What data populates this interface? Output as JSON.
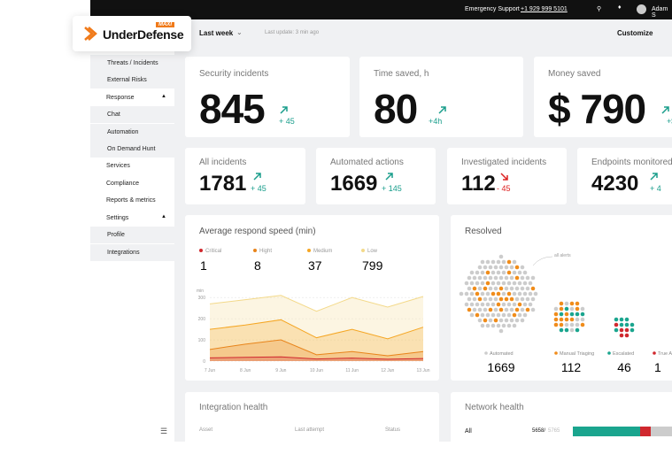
{
  "topbar": {
    "support_label": "Emergency Support",
    "phone": "+1 929 999 5101",
    "user": "Adam S"
  },
  "logo": {
    "name": "UnderDefense",
    "badge": "MAXI"
  },
  "sidebar": {
    "items": [
      "Threats / Incidents",
      "External Risks",
      "Response",
      "Chat",
      "Automation",
      "On Demand Hunt",
      "Services",
      "Compliance",
      "Reports & metrics",
      "Settings",
      "Profile",
      "Integrations"
    ]
  },
  "toolbar": {
    "period": "Last week",
    "last_update": "Last update: 3 min ago",
    "customize": "Customize"
  },
  "big_cards": [
    {
      "title": "Security incidents",
      "value": 845,
      "delta": "+ 45"
    },
    {
      "title": "Time saved, h",
      "value": 80,
      "delta": "+4h"
    },
    {
      "title": "Money saved",
      "value": "$ 790",
      "delta": "+$"
    }
  ],
  "small_cards": [
    {
      "title": "All incidents",
      "value": 1781,
      "delta": "+ 45"
    },
    {
      "title": "Automated actions",
      "value": 1669,
      "delta": "+ 145"
    },
    {
      "title": "Investigated incidents",
      "value": 112,
      "delta": "- 45"
    },
    {
      "title": "Endpoints monitored",
      "value": 4230,
      "delta": "+ 4"
    }
  ],
  "chart_data": {
    "type": "area",
    "title": "Average respond speed (min)",
    "y_label": "min",
    "categories": [
      "7 Jun",
      "8 Jun",
      "9 Jun",
      "10 Jun",
      "11 Jun",
      "12 Jun",
      "13 Jun"
    ],
    "ylim": [
      0,
      330
    ],
    "yticks": [
      0,
      100,
      200,
      300
    ],
    "grid": true,
    "series": [
      {
        "name": "Low",
        "total": 799,
        "color": "#f3d98a",
        "values": [
          270,
          290,
          310,
          235,
          300,
          255,
          305
        ]
      },
      {
        "name": "Medium",
        "total": 37,
        "color": "#f5a623",
        "values": [
          150,
          170,
          195,
          110,
          150,
          105,
          160
        ]
      },
      {
        "name": "Hight",
        "total": 8,
        "color": "#e8841a",
        "values": [
          55,
          80,
          100,
          30,
          45,
          25,
          45
        ]
      },
      {
        "name": "Critical",
        "total": 1,
        "color": "#d0282e",
        "values": [
          15,
          18,
          20,
          10,
          14,
          9,
          12
        ]
      }
    ]
  },
  "resolved": {
    "title": "Resolved",
    "annotation": "all alerts",
    "items": [
      {
        "name": "Automated",
        "value": 1669,
        "color": "#cccccc"
      },
      {
        "name": "Manual Triaging",
        "value": 112,
        "color": "#f08c1a"
      },
      {
        "name": "Escalated",
        "value": 46,
        "color": "#1aa58e"
      },
      {
        "name": "True A",
        "value": 1,
        "color": "#d0282e"
      }
    ]
  },
  "integration_health": {
    "title": "Integration health",
    "columns": [
      "Asset",
      "Last attempt",
      "Status"
    ]
  },
  "network_health": {
    "title": "Network health",
    "row": {
      "label": "All",
      "value": "5658/",
      "total": "5765"
    }
  }
}
